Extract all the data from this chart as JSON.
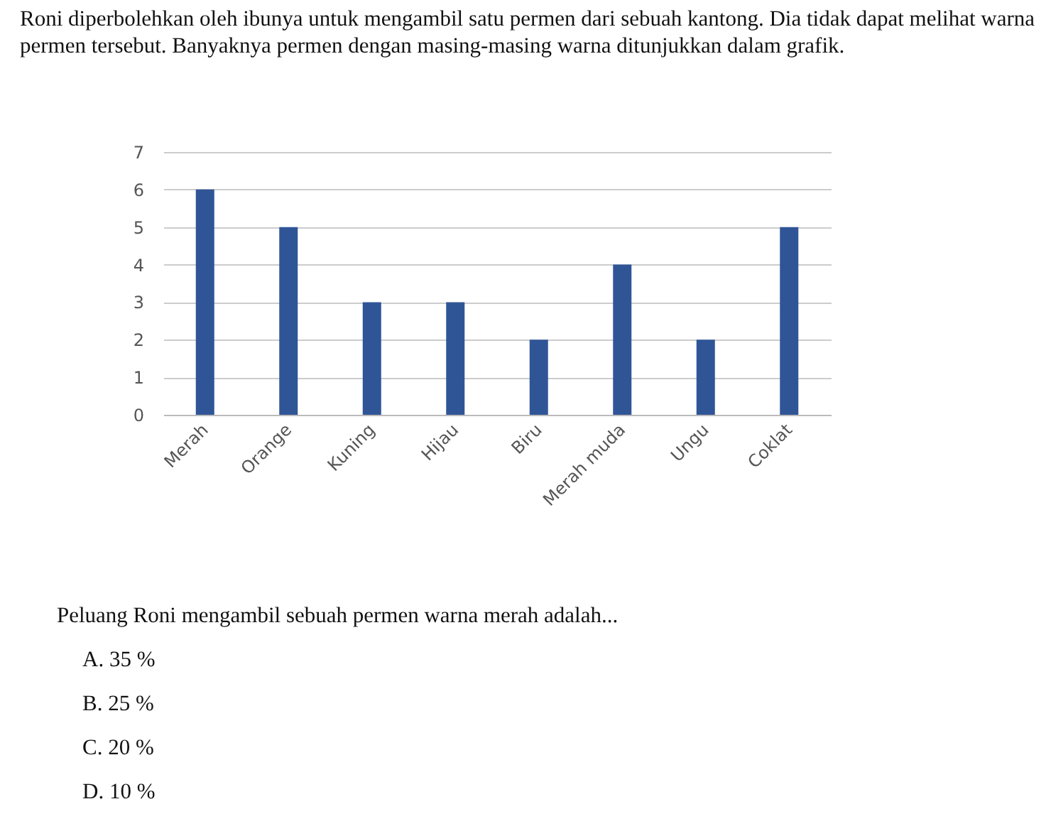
{
  "chart_data": {
    "type": "bar",
    "title": "Roni diperbolehkan oleh ibunya untuk mengambil satu permen dari sebuah kantong. Dia tidak dapat melihat warna permen tersebut. Banyaknya permen dengan masing-masing warna ditunjukkan dalam grafik.",
    "categories": [
      "Merah",
      "Orange",
      "Kuning",
      "Hijau",
      "Biru",
      "Merah muda",
      "Ungu",
      "Coklat"
    ],
    "values": [
      6,
      5,
      3,
      3,
      2,
      4,
      2,
      5
    ],
    "color": "#2f5597",
    "ylim": [
      0,
      7
    ],
    "yticks": [
      0,
      1,
      2,
      3,
      4,
      5,
      6,
      7
    ],
    "grid": "y",
    "annotations": [
      "Peluang Roni mengambil sebuah permen warna merah adalah...",
      "A.  35 %",
      "B.  25 %",
      "C.  20 %",
      "D.  10 %"
    ]
  }
}
